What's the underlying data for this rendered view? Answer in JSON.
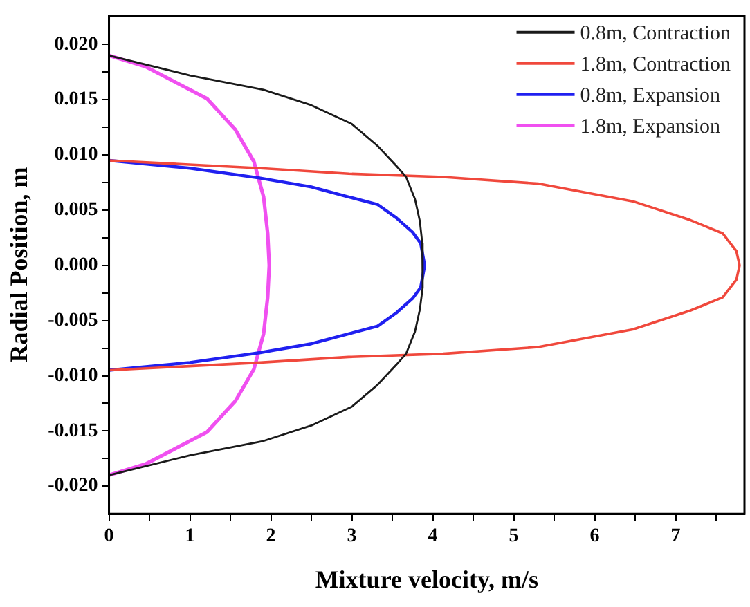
{
  "chart_data": {
    "type": "line",
    "xlabel": "Mixture velocity, m/s",
    "ylabel": "Radial Position, m",
    "xlim": [
      0,
      7.85
    ],
    "ylim": [
      -0.0225,
      0.0226
    ],
    "xticks": [
      0,
      {
        "value": 0.5,
        "label": null
      },
      1,
      {
        "value": 1.5,
        "label": null
      },
      2,
      {
        "value": 2.5,
        "label": null
      },
      3,
      {
        "value": 3.5,
        "label": null
      },
      4,
      {
        "value": 4.5,
        "label": null
      },
      5,
      {
        "value": 5.5,
        "label": null
      },
      6,
      {
        "value": 6.5,
        "label": null
      },
      7,
      {
        "value": 7.5,
        "label": null
      }
    ],
    "yticks": [
      {
        "value": -0.02,
        "label": "-0.020"
      },
      {
        "value": -0.0175,
        "label": null
      },
      {
        "value": -0.015,
        "label": "-0.015"
      },
      {
        "value": -0.0125,
        "label": null
      },
      {
        "value": -0.01,
        "label": "-0.010"
      },
      {
        "value": -0.0075,
        "label": null
      },
      {
        "value": -0.005,
        "label": "-0.005"
      },
      {
        "value": -0.0025,
        "label": null
      },
      {
        "value": 0,
        "label": "0.000"
      },
      {
        "value": 0.0025,
        "label": null
      },
      {
        "value": 0.005,
        "label": "0.005"
      },
      {
        "value": 0.0075,
        "label": null
      },
      {
        "value": 0.01,
        "label": "0.010"
      },
      {
        "value": 0.0125,
        "label": null
      },
      {
        "value": 0.015,
        "label": "0.015"
      },
      {
        "value": 0.0175,
        "label": null
      },
      {
        "value": 0.02,
        "label": "0.020"
      }
    ],
    "legend": "top right",
    "marker": "none",
    "series": [
      {
        "name": "0.8m, Contraction",
        "color": "#1a1a1a",
        "x": [
          0,
          1,
          1.91,
          2.5,
          3.0,
          3.32,
          3.55,
          3.67,
          3.78,
          3.84,
          3.87,
          3.88,
          3.87,
          3.84,
          3.78,
          3.67,
          3.55,
          3.32,
          3.0,
          2.5,
          1.91,
          1,
          0
        ],
        "values": [
          0.019,
          0.0172,
          0.0159,
          0.0145,
          0.0128,
          0.0108,
          0.009,
          0.008,
          0.006,
          0.004,
          0.002,
          0,
          -0.002,
          -0.004,
          -0.006,
          -0.008,
          -0.009,
          -0.0108,
          -0.0128,
          -0.0145,
          -0.0159,
          -0.0172,
          -0.019
        ]
      },
      {
        "name": "1.8m, Contraction",
        "color": "#f0483c",
        "x": [
          0,
          1.87,
          2.96,
          4.13,
          5.3,
          6.47,
          7.18,
          7.58,
          7.75,
          7.79,
          7.75,
          7.58,
          7.18,
          6.47,
          5.3,
          4.13,
          2.96,
          1.87,
          0
        ],
        "values": [
          0.0095,
          0.0088,
          0.0083,
          0.008,
          0.0074,
          0.0058,
          0.0041,
          0.0029,
          0.0013,
          0,
          -0.0013,
          -0.0029,
          -0.0041,
          -0.0058,
          -0.0074,
          -0.008,
          -0.0083,
          -0.0088,
          -0.0095
        ]
      },
      {
        "name": "0.8m, Expansion",
        "color": "#2020f0",
        "x": [
          0,
          1,
          1.87,
          2.5,
          2.96,
          3.32,
          3.55,
          3.75,
          3.85,
          3.9,
          3.85,
          3.75,
          3.55,
          3.32,
          2.96,
          2.5,
          1.87,
          1,
          0
        ],
        "values": [
          0.0095,
          0.0088,
          0.0079,
          0.0071,
          0.0062,
          0.0055,
          0.0043,
          0.003,
          0.002,
          0,
          -0.002,
          -0.003,
          -0.0043,
          -0.0055,
          -0.0062,
          -0.0071,
          -0.0079,
          -0.0088,
          -0.0095
        ]
      },
      {
        "name": "1.8m, Expansion",
        "color": "#f050f0",
        "x": [
          0,
          0.45,
          1.21,
          1.56,
          1.79,
          1.91,
          1.96,
          1.98,
          1.96,
          1.91,
          1.79,
          1.56,
          1.21,
          0.45,
          0
        ],
        "values": [
          0.019,
          0.018,
          0.0151,
          0.0123,
          0.0094,
          0.0062,
          0.0029,
          0,
          -0.0029,
          -0.0062,
          -0.0094,
          -0.0123,
          -0.0151,
          -0.018,
          -0.019
        ]
      }
    ]
  }
}
